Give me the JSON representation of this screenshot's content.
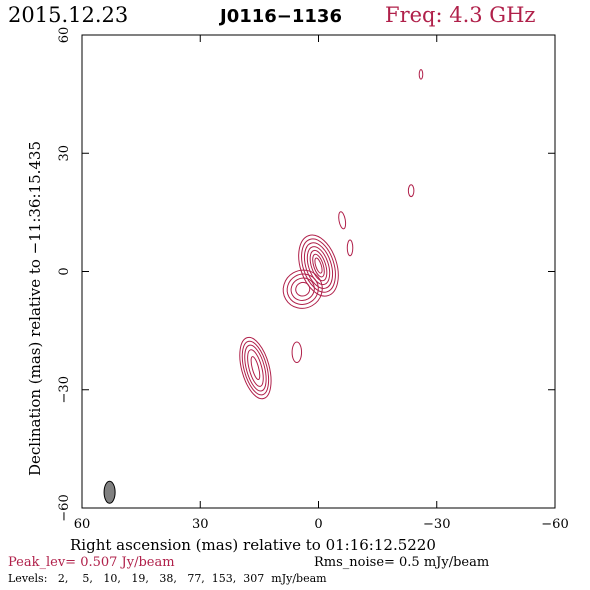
{
  "header": {
    "date": "2015.12.23",
    "source": "J0116−1136",
    "freq": "Freq: 4.3 GHz"
  },
  "colors": {
    "contour": "#b0204a",
    "accent": "#b0204a",
    "beam": "#808080",
    "text": "#000000"
  },
  "footer": {
    "peak": "Peak_lev=  0.507 Jy/beam",
    "rms": "Rms_noise=   0.5 mJy/beam",
    "levels": "Levels:   2,    5,   10,   19,   38,   77,  153,  307  mJy/beam"
  },
  "chart_data": {
    "type": "contour",
    "title": "J0116−1136",
    "xlabel": "Right ascension (mas) relative to 01:16:12.5220",
    "ylabel": "Declination (mas) relative to −11:36:15.435",
    "xlim": [
      60,
      -60
    ],
    "ylim": [
      -60,
      60
    ],
    "xticks": [
      60,
      30,
      0,
      -30,
      -60
    ],
    "yticks": [
      -60,
      -30,
      0,
      30,
      60
    ],
    "xtick_labels": [
      "60",
      "30",
      "0",
      "−30",
      "−60"
    ],
    "ytick_labels": [
      "−60",
      "−30",
      "0",
      "30",
      "60"
    ],
    "levels_mJy": [
      2,
      5,
      10,
      19,
      38,
      77,
      153,
      307
    ],
    "beam": {
      "x": 53,
      "y": -56,
      "major": 5.6,
      "minor": 2.8,
      "pa_deg": 0
    },
    "components": [
      {
        "name": "core",
        "x": 0,
        "y": 1.5,
        "rings": [
          {
            "rx": 4.6,
            "ry": 8.0,
            "rot": -18
          },
          {
            "rx": 3.9,
            "ry": 7.0,
            "rot": -18
          },
          {
            "rx": 3.2,
            "ry": 6.0,
            "rot": -18
          },
          {
            "rx": 2.5,
            "ry": 5.0,
            "rot": -18
          },
          {
            "rx": 1.8,
            "ry": 4.0,
            "rot": -18
          },
          {
            "rx": 1.2,
            "ry": 3.0,
            "rot": -18
          },
          {
            "rx": 0.7,
            "ry": 2.0,
            "rot": -18
          }
        ]
      },
      {
        "name": "inner-jet",
        "x": 4.0,
        "y": -4.5,
        "rings": [
          {
            "rx": 5.0,
            "ry": 4.8,
            "rot": -30
          },
          {
            "rx": 4.0,
            "ry": 3.8,
            "rot": -30
          },
          {
            "rx": 3.0,
            "ry": 2.8,
            "rot": -30
          },
          {
            "rx": 1.8,
            "ry": 1.7,
            "rot": -30
          }
        ]
      },
      {
        "name": "jet-knot",
        "x": 16.0,
        "y": -24.5,
        "rings": [
          {
            "rx": 3.5,
            "ry": 8.0,
            "rot": -15
          },
          {
            "rx": 2.9,
            "ry": 7.0,
            "rot": -15
          },
          {
            "rx": 2.3,
            "ry": 6.0,
            "rot": -15
          },
          {
            "rx": 1.6,
            "ry": 4.8,
            "rot": -15
          },
          {
            "rx": 0.8,
            "ry": 3.0,
            "rot": -15
          }
        ]
      },
      {
        "name": "blob-1",
        "x": 5.5,
        "y": -20.5,
        "rings": [
          {
            "rx": 1.2,
            "ry": 2.6,
            "rot": 0
          }
        ]
      },
      {
        "name": "blob-2",
        "x": -8.0,
        "y": 6.0,
        "rings": [
          {
            "rx": 0.7,
            "ry": 2.0,
            "rot": 0
          }
        ]
      },
      {
        "name": "blob-3",
        "x": -6.0,
        "y": 13.0,
        "rings": [
          {
            "rx": 0.8,
            "ry": 2.2,
            "rot": -10
          }
        ]
      },
      {
        "name": "blob-4",
        "x": -23.5,
        "y": 20.5,
        "rings": [
          {
            "rx": 0.7,
            "ry": 1.5,
            "rot": 0
          }
        ]
      },
      {
        "name": "blob-5",
        "x": -26.0,
        "y": 50.0,
        "rings": [
          {
            "rx": 0.45,
            "ry": 1.2,
            "rot": 0
          }
        ]
      }
    ]
  }
}
